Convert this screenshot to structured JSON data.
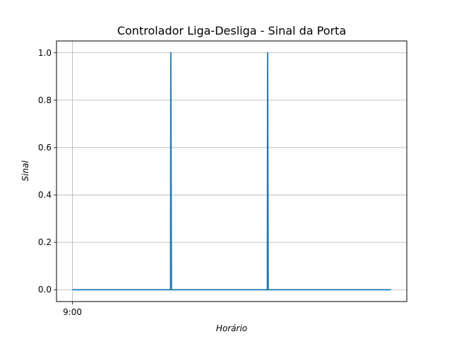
{
  "chart_data": {
    "type": "line",
    "title": "Controlador Liga-Desliga - Sinal da Porta",
    "xlabel": "Horário",
    "ylabel": "Sinal",
    "x_tick_labels": [
      {
        "label": "9:00",
        "x": 0
      }
    ],
    "xlim": [
      -0.05,
      1.05
    ],
    "ylim": [
      -0.05,
      1.05
    ],
    "y_ticks": [
      0.0,
      0.2,
      0.4,
      0.6,
      0.8,
      1.0
    ],
    "y_tick_labels": [
      "0.0",
      "0.2",
      "0.4",
      "0.6",
      "0.8",
      "1.0"
    ],
    "grid": true,
    "series": [
      {
        "color": "#1f77b4",
        "points": [
          [
            0.0,
            0
          ],
          [
            0.308,
            0
          ],
          [
            0.309,
            1
          ],
          [
            0.311,
            0
          ],
          [
            0.612,
            0
          ],
          [
            0.613,
            1
          ],
          [
            0.615,
            0
          ],
          [
            1.0,
            0
          ]
        ]
      }
    ]
  }
}
